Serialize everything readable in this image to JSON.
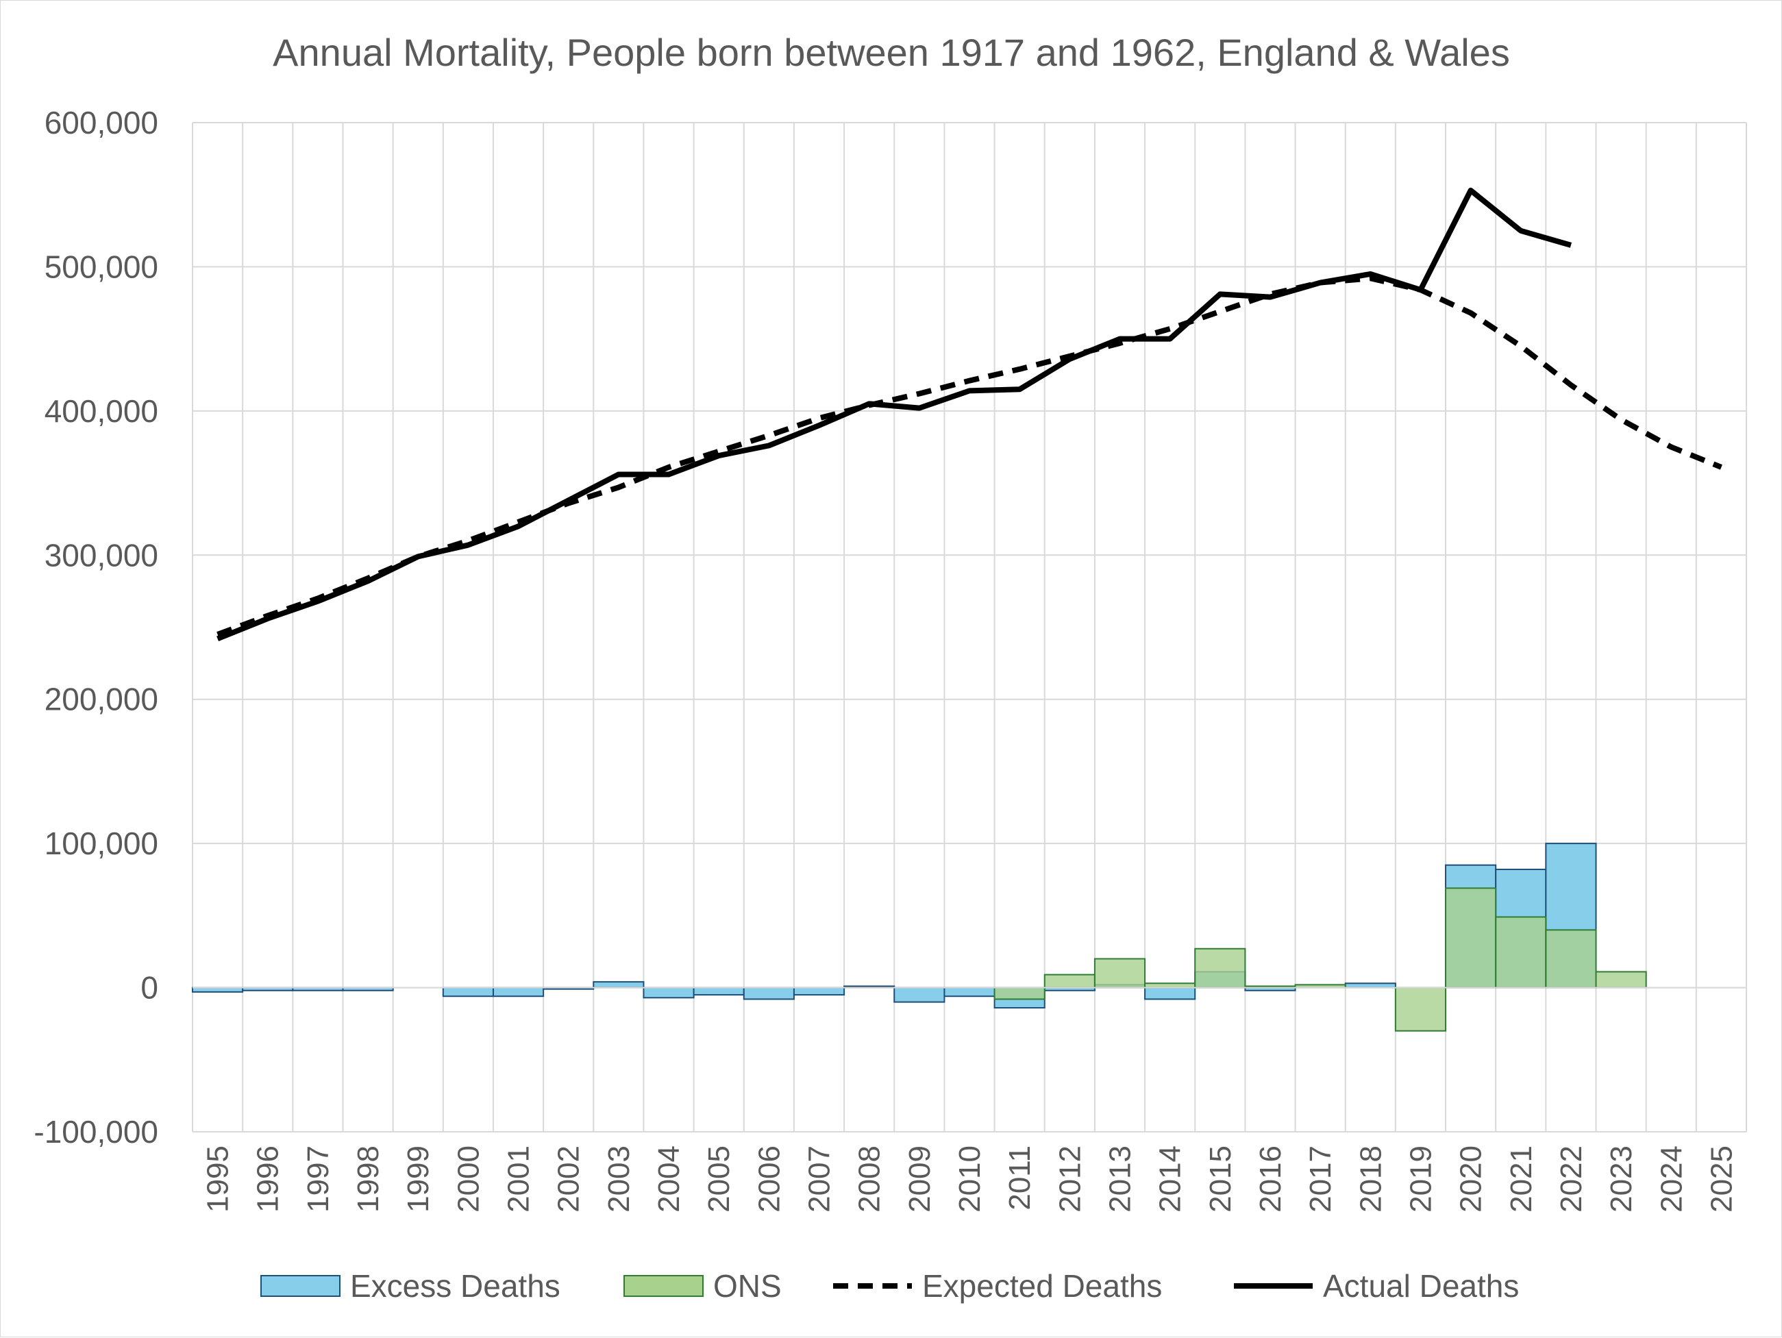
{
  "chart_data": {
    "type": "bar",
    "title": "Annual Mortality, People born between 1917 and 1962, England & Wales",
    "xlabel": "",
    "ylabel": "",
    "ylim": [
      -100000,
      600000
    ],
    "yticks": [
      -100000,
      0,
      100000,
      200000,
      300000,
      400000,
      500000,
      600000
    ],
    "ytick_labels": [
      "-100,000",
      "0",
      "100,000",
      "200,000",
      "300,000",
      "400,000",
      "500,000",
      "600,000"
    ],
    "categories": [
      "1995",
      "1996",
      "1997",
      "1998",
      "1999",
      "2000",
      "2001",
      "2002",
      "2003",
      "2004",
      "2005",
      "2006",
      "2007",
      "2008",
      "2009",
      "2010",
      "2011",
      "2012",
      "2013",
      "2014",
      "2015",
      "2016",
      "2017",
      "2018",
      "2019",
      "2020",
      "2021",
      "2022",
      "2023",
      "2024",
      "2025"
    ],
    "grid": true,
    "legend_position": "bottom",
    "series": [
      {
        "name": "Excess Deaths",
        "kind": "bar",
        "color": "#87ceeb",
        "edge": "#1f4e79",
        "values": [
          -3000,
          -2000,
          -2000,
          -2000,
          0,
          -6000,
          -6000,
          -1000,
          4000,
          -7000,
          -5000,
          -8000,
          -5000,
          1000,
          -10000,
          -6000,
          -14000,
          -2000,
          2000,
          -8000,
          11000,
          -2000,
          0,
          3000,
          0,
          85000,
          82000,
          100000,
          null,
          null,
          null
        ]
      },
      {
        "name": "ONS",
        "kind": "bar",
        "color": "#a9d18e",
        "edge": "#2e7d32",
        "values": [
          null,
          null,
          null,
          null,
          null,
          null,
          null,
          null,
          null,
          null,
          null,
          null,
          null,
          null,
          null,
          null,
          -8000,
          9000,
          20000,
          3000,
          27000,
          1000,
          2000,
          0,
          -30000,
          69000,
          49000,
          40000,
          11000,
          null,
          null
        ]
      },
      {
        "name": "Expected Deaths",
        "kind": "line",
        "dash": true,
        "color": "#000000",
        "values": [
          245000,
          258000,
          270000,
          284000,
          299000,
          310000,
          323000,
          336000,
          347000,
          361000,
          372000,
          383000,
          395000,
          404000,
          412000,
          421000,
          429000,
          438000,
          447000,
          457000,
          469000,
          481000,
          489000,
          492000,
          484000,
          468000,
          445000,
          418000,
          394000,
          375000,
          361000
        ]
      },
      {
        "name": "Actual Deaths",
        "kind": "line",
        "dash": false,
        "color": "#000000",
        "values": [
          242000,
          256000,
          268000,
          282000,
          299000,
          307000,
          320000,
          338000,
          356000,
          356000,
          369000,
          376000,
          390000,
          405000,
          402000,
          414000,
          415000,
          436000,
          450000,
          450000,
          481000,
          479000,
          489000,
          495000,
          484000,
          553000,
          525000,
          515000,
          null,
          null,
          null
        ]
      }
    ]
  }
}
